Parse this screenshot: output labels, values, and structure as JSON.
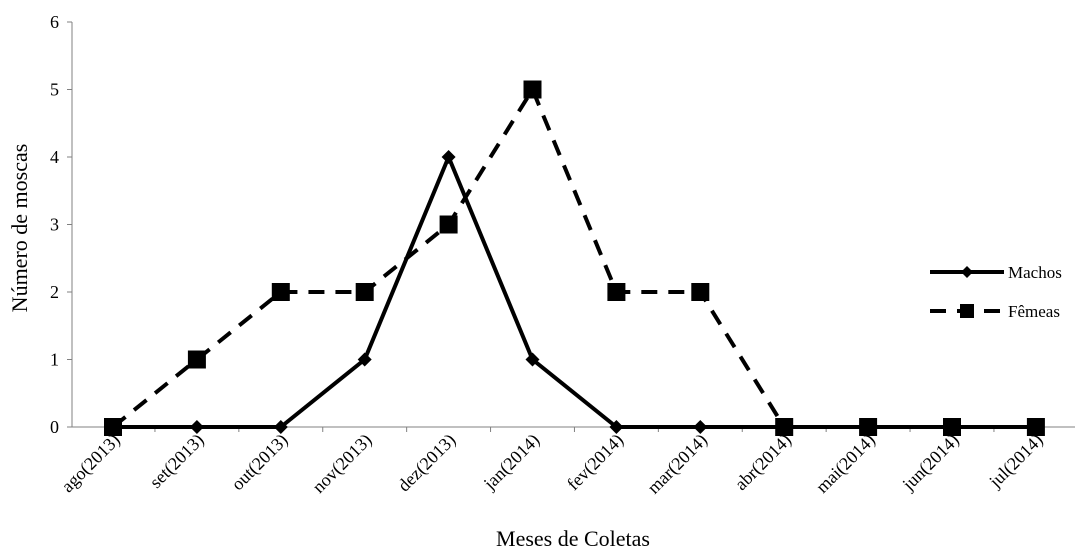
{
  "chart_data": {
    "type": "line",
    "title": "",
    "xlabel": "Meses de Coletas",
    "ylabel": "Número de moscas",
    "categories": [
      "ago(2013)",
      "set(2013)",
      "out(2013)",
      "nov(2013)",
      "dez(2013)",
      "jan(2014)",
      "fev(2014)",
      "mar(2014)",
      "abr(2014)",
      "mai(2014)",
      "jun(2014)",
      "jul(2014)"
    ],
    "ylim": [
      0,
      6
    ],
    "yticks": [
      0,
      1,
      2,
      3,
      4,
      5,
      6
    ],
    "grid": false,
    "legend_position": "right",
    "series": [
      {
        "name": "Machos",
        "values": [
          0,
          0,
          0,
          1,
          4,
          1,
          0,
          0,
          0,
          0,
          0,
          0
        ],
        "line_style": "solid",
        "marker": "diamond",
        "color": "#000000"
      },
      {
        "name": "Fêmeas",
        "values": [
          0,
          1,
          2,
          2,
          3,
          5,
          2,
          2,
          0,
          0,
          0,
          0
        ],
        "line_style": "dashed",
        "marker": "square",
        "color": "#000000"
      }
    ]
  }
}
